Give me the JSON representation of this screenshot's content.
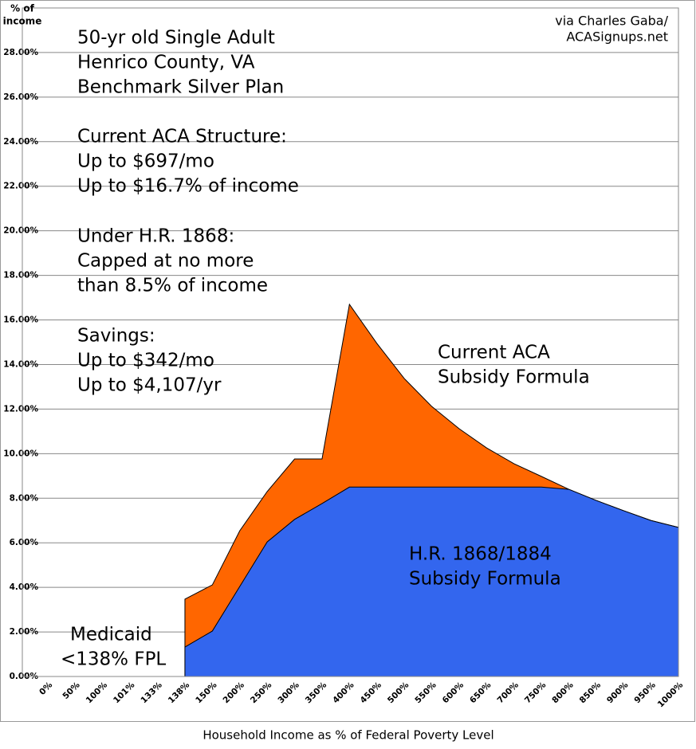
{
  "chart_data": {
    "type": "area",
    "y_axis_title": [
      "% of",
      "income"
    ],
    "x_axis_title": "Household Income as % of Federal Poverty Level",
    "source": [
      "via Charles Gaba/",
      "ACASignups.net"
    ],
    "categories": [
      "0%",
      "50%",
      "100%",
      "101%",
      "133%",
      "138%",
      "150%",
      "200%",
      "250%",
      "300%",
      "350%",
      "400%",
      "450%",
      "500%",
      "550%",
      "600%",
      "650%",
      "700%",
      "750%",
      "800%",
      "850%",
      "900%",
      "950%",
      "1000%"
    ],
    "series": [
      {
        "color": "#ff6600",
        "values": [
          null,
          null,
          null,
          null,
          null,
          3.47,
          4.11,
          6.54,
          8.3,
          9.76,
          9.76,
          16.7,
          14.95,
          13.37,
          12.12,
          11.12,
          10.26,
          9.55,
          8.98,
          8.4,
          7.9,
          7.44,
          7.0,
          6.69
        ]
      },
      {
        "color": "#3366ee",
        "values": [
          null,
          null,
          null,
          null,
          null,
          1.32,
          2.04,
          4.04,
          6.04,
          7.05,
          7.76,
          8.5,
          8.5,
          8.5,
          8.5,
          8.5,
          8.5,
          8.5,
          8.5,
          8.4,
          7.9,
          7.44,
          7.0,
          6.69
        ]
      }
    ],
    "ylim": [
      0,
      30
    ],
    "yticks": [
      {
        "value": 0,
        "label": "0.00%"
      },
      {
        "value": 2,
        "label": "2.00%"
      },
      {
        "value": 4,
        "label": "4.00%"
      },
      {
        "value": 6,
        "label": "6.00%"
      },
      {
        "value": 8,
        "label": "8.00%"
      },
      {
        "value": 10,
        "label": "10.00%"
      },
      {
        "value": 12,
        "label": "12.00%"
      },
      {
        "value": 14,
        "label": "14.00%"
      },
      {
        "value": 16,
        "label": "16.00%"
      },
      {
        "value": 18,
        "label": "18.00%"
      },
      {
        "value": 20,
        "label": "20.00%"
      },
      {
        "value": 22,
        "label": "22.00%"
      },
      {
        "value": 24,
        "label": "24.00%"
      },
      {
        "value": 26,
        "label": "26.00%"
      },
      {
        "value": 28,
        "label": "28.00%"
      }
    ],
    "grid": true,
    "annotations": [
      {
        "lines": [
          "50-yr old Single Adult",
          "Henrico County, VA",
          "Benchmark Silver Plan"
        ]
      },
      {
        "lines": [
          "Current ACA Structure:",
          "Up to $697/mo",
          "Up to $16.7% of income"
        ]
      },
      {
        "lines": [
          "Under H.R. 1868:",
          "Capped at no more",
          "than 8.5% of income"
        ]
      },
      {
        "lines": [
          "Savings:",
          "Up to $342/mo",
          "Up to $4,107/yr"
        ]
      },
      {
        "lines": [
          "Current ACA",
          "Subsidy Formula"
        ]
      },
      {
        "lines": [
          "H.R. 1868/1884",
          "Subsidy Formula"
        ]
      },
      {
        "lines": [
          "Medicaid",
          "<138% FPL"
        ]
      }
    ]
  }
}
